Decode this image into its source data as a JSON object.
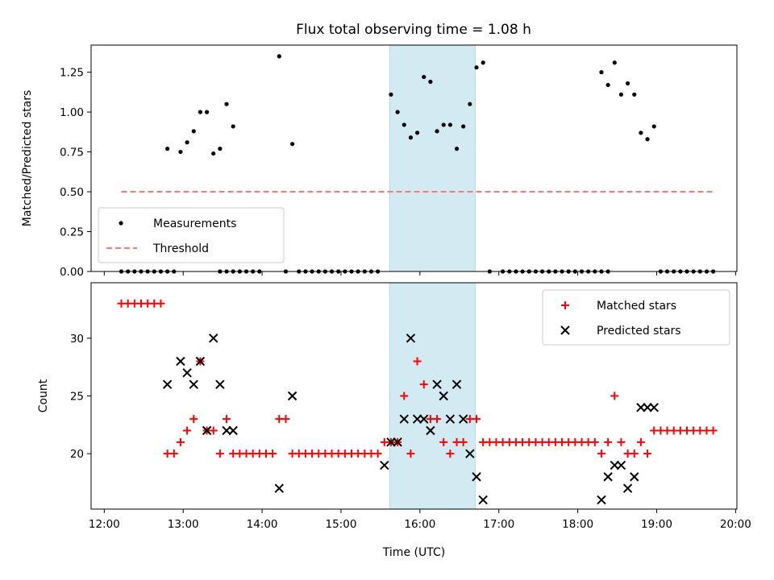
{
  "title": "Flux total observing time = 1.08 h",
  "chart_data": [
    {
      "type": "scatter",
      "ylabel": "Matched/Predicted stars",
      "xlabel": "",
      "xlim": [
        "12:00",
        "20:00"
      ],
      "ylim": [
        0,
        1.42
      ],
      "x_ticks": [
        "12:00",
        "13:00",
        "14:00",
        "15:00",
        "16:00",
        "17:00",
        "18:00",
        "19:00",
        "20:00"
      ],
      "y_ticks": [
        "0.00",
        "0.25",
        "0.50",
        "0.75",
        "1.00",
        "1.25"
      ],
      "legend_position": "lower left",
      "highlight_span": {
        "x0": "15:37",
        "x1": "16:42",
        "color": "#add8e6"
      },
      "series": [
        {
          "name": "Measurements",
          "marker": "dot",
          "color": "#000000",
          "x": [
            "12:13",
            "12:18",
            "12:23",
            "12:28",
            "12:33",
            "12:38",
            "12:43",
            "12:48",
            "12:53",
            "13:28",
            "13:33",
            "13:38",
            "13:43",
            "13:48",
            "13:53",
            "13:58",
            "14:18",
            "14:28",
            "14:33",
            "14:38",
            "14:43",
            "14:48",
            "14:53",
            "14:58",
            "15:03",
            "15:08",
            "15:13",
            "15:18",
            "15:23",
            "15:28",
            "16:53",
            "17:03",
            "17:08",
            "17:13",
            "17:18",
            "17:23",
            "17:28",
            "17:33",
            "17:38",
            "17:43",
            "17:48",
            "17:53",
            "17:58",
            "18:03",
            "18:08",
            "18:13",
            "18:18",
            "18:23",
            "19:03",
            "19:08",
            "19:13",
            "19:18",
            "19:23",
            "19:28",
            "19:33",
            "19:38",
            "19:43",
            "12:48",
            "12:58",
            "13:03",
            "13:08",
            "13:13",
            "13:18",
            "13:23",
            "13:28",
            "13:33",
            "13:38",
            "14:13",
            "14:23",
            "15:38",
            "15:43",
            "15:48",
            "15:53",
            "15:58",
            "16:03",
            "16:08",
            "16:13",
            "16:18",
            "16:23",
            "16:28",
            "16:33",
            "16:38",
            "16:43",
            "16:48",
            "18:18",
            "18:23",
            "18:28",
            "18:33",
            "18:38",
            "18:43",
            "18:48",
            "18:53",
            "18:58"
          ],
          "y": [
            0,
            0,
            0,
            0,
            0,
            0,
            0,
            0,
            0,
            0,
            0,
            0,
            0,
            0,
            0,
            0,
            0,
            0,
            0,
            0,
            0,
            0,
            0,
            0,
            0,
            0,
            0,
            0,
            0,
            0,
            0,
            0,
            0,
            0,
            0,
            0,
            0,
            0,
            0,
            0,
            0,
            0,
            0,
            0,
            0,
            0,
            0,
            0,
            0,
            0,
            0,
            0,
            0,
            0,
            0,
            0,
            0,
            0.77,
            0.75,
            0.81,
            0.88,
            1.0,
            1.0,
            0.74,
            0.77,
            1.05,
            0.91,
            1.35,
            0.8,
            1.11,
            1.0,
            0.92,
            0.84,
            0.87,
            1.22,
            1.19,
            0.88,
            0.92,
            0.92,
            0.77,
            0.91,
            1.05,
            1.28,
            1.31,
            1.25,
            1.17,
            1.31,
            1.11,
            1.18,
            1.11,
            0.87,
            0.83,
            0.91
          ]
        },
        {
          "name": "Threshold",
          "marker": "dashed-line",
          "color": "#ff7777",
          "x": [
            "12:13",
            "19:43"
          ],
          "y": [
            0.5,
            0.5
          ]
        }
      ]
    },
    {
      "type": "scatter",
      "ylabel": "Count",
      "xlabel": "Time (UTC)",
      "xlim": [
        "12:00",
        "20:00"
      ],
      "ylim": [
        15.2,
        34.8
      ],
      "x_ticks": [
        "12:00",
        "13:00",
        "14:00",
        "15:00",
        "16:00",
        "17:00",
        "18:00",
        "19:00",
        "20:00"
      ],
      "y_ticks": [
        "20",
        "25",
        "30"
      ],
      "legend_position": "upper right",
      "highlight_span": {
        "x0": "15:37",
        "x1": "16:42",
        "color": "#add8e6"
      },
      "series": [
        {
          "name": "Matched stars",
          "marker": "plus",
          "color": "#ff0000",
          "x": [
            "12:13",
            "12:18",
            "12:23",
            "12:28",
            "12:33",
            "12:38",
            "12:43",
            "12:48",
            "12:53",
            "12:58",
            "13:03",
            "13:08",
            "13:13",
            "13:18",
            "13:23",
            "13:28",
            "13:33",
            "13:38",
            "13:43",
            "13:48",
            "13:53",
            "13:58",
            "14:03",
            "14:08",
            "14:13",
            "14:18",
            "14:23",
            "14:28",
            "14:33",
            "14:38",
            "14:43",
            "14:48",
            "14:53",
            "14:58",
            "15:03",
            "15:08",
            "15:13",
            "15:18",
            "15:23",
            "15:28",
            "15:33",
            "15:38",
            "15:43",
            "15:48",
            "15:53",
            "15:58",
            "16:03",
            "16:08",
            "16:13",
            "16:18",
            "16:23",
            "16:28",
            "16:33",
            "16:38",
            "16:43",
            "16:48",
            "16:53",
            "16:58",
            "17:03",
            "17:08",
            "17:13",
            "17:18",
            "17:23",
            "17:28",
            "17:33",
            "17:38",
            "17:43",
            "17:48",
            "17:53",
            "17:58",
            "18:03",
            "18:08",
            "18:13",
            "18:18",
            "18:23",
            "18:28",
            "18:33",
            "18:38",
            "18:43",
            "18:48",
            "18:53",
            "18:58",
            "19:03",
            "19:08",
            "19:13",
            "19:18",
            "19:23",
            "19:28",
            "19:33",
            "19:38",
            "19:43"
          ],
          "y": [
            33,
            33,
            33,
            33,
            33,
            33,
            33,
            20,
            20,
            21,
            22,
            23,
            28,
            22,
            22,
            20,
            23,
            20,
            20,
            20,
            20,
            20,
            20,
            20,
            23,
            23,
            20,
            20,
            20,
            20,
            20,
            20,
            20,
            20,
            20,
            20,
            20,
            20,
            20,
            20,
            21,
            21,
            21,
            25,
            20,
            28,
            26,
            23,
            23,
            21,
            20,
            21,
            21,
            23,
            23,
            21,
            21,
            21,
            21,
            21,
            21,
            21,
            21,
            21,
            21,
            21,
            21,
            21,
            21,
            21,
            21,
            21,
            21,
            20,
            21,
            25,
            21,
            20,
            20,
            21,
            20,
            22,
            22,
            22,
            22,
            22,
            22,
            22,
            22,
            22,
            22
          ]
        },
        {
          "name": "Predicted stars",
          "marker": "x",
          "color": "#000000",
          "x": [
            "12:48",
            "12:58",
            "13:03",
            "13:08",
            "13:13",
            "13:18",
            "13:23",
            "13:28",
            "13:33",
            "13:38",
            "14:13",
            "14:23",
            "15:33",
            "15:38",
            "15:43",
            "15:48",
            "15:53",
            "15:58",
            "16:03",
            "16:08",
            "16:13",
            "16:18",
            "16:23",
            "16:28",
            "16:33",
            "16:38",
            "16:43",
            "16:48",
            "18:18",
            "18:23",
            "18:28",
            "18:33",
            "18:38",
            "18:43",
            "18:48",
            "18:53",
            "18:58"
          ],
          "y": [
            26,
            28,
            27,
            26,
            28,
            22,
            30,
            26,
            22,
            22,
            17,
            25,
            19,
            21,
            21,
            23,
            30,
            23,
            23,
            22,
            26,
            25,
            23,
            26,
            23,
            20,
            18,
            16,
            16,
            18,
            19,
            19,
            17,
            18,
            24,
            24,
            24
          ]
        }
      ]
    }
  ]
}
